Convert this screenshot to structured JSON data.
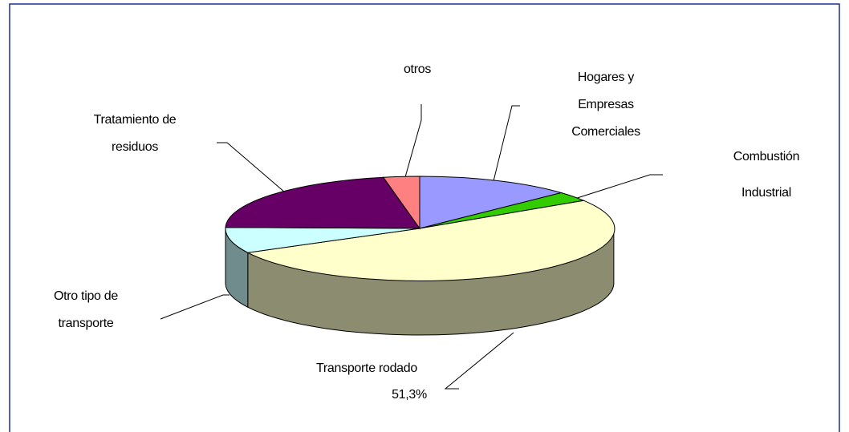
{
  "chart_data": {
    "type": "pie3d",
    "categories": [
      "Hogares y\nEmpresas\nComerciales",
      "Combustión\nIndustrial",
      "Transporte rodado",
      "Otro tipo de\ntransporte",
      "Tratamiento de\nresiduos",
      "otros"
    ],
    "values": [
      13,
      3,
      51.3,
      8,
      21.7,
      3
    ],
    "value_labels": [
      null,
      null,
      "51,3%",
      null,
      null,
      null
    ],
    "colors": [
      "#9999ff",
      "#33cc00",
      "#ffffcc",
      "#ccffff",
      "#660066",
      "#ff8080"
    ]
  }
}
